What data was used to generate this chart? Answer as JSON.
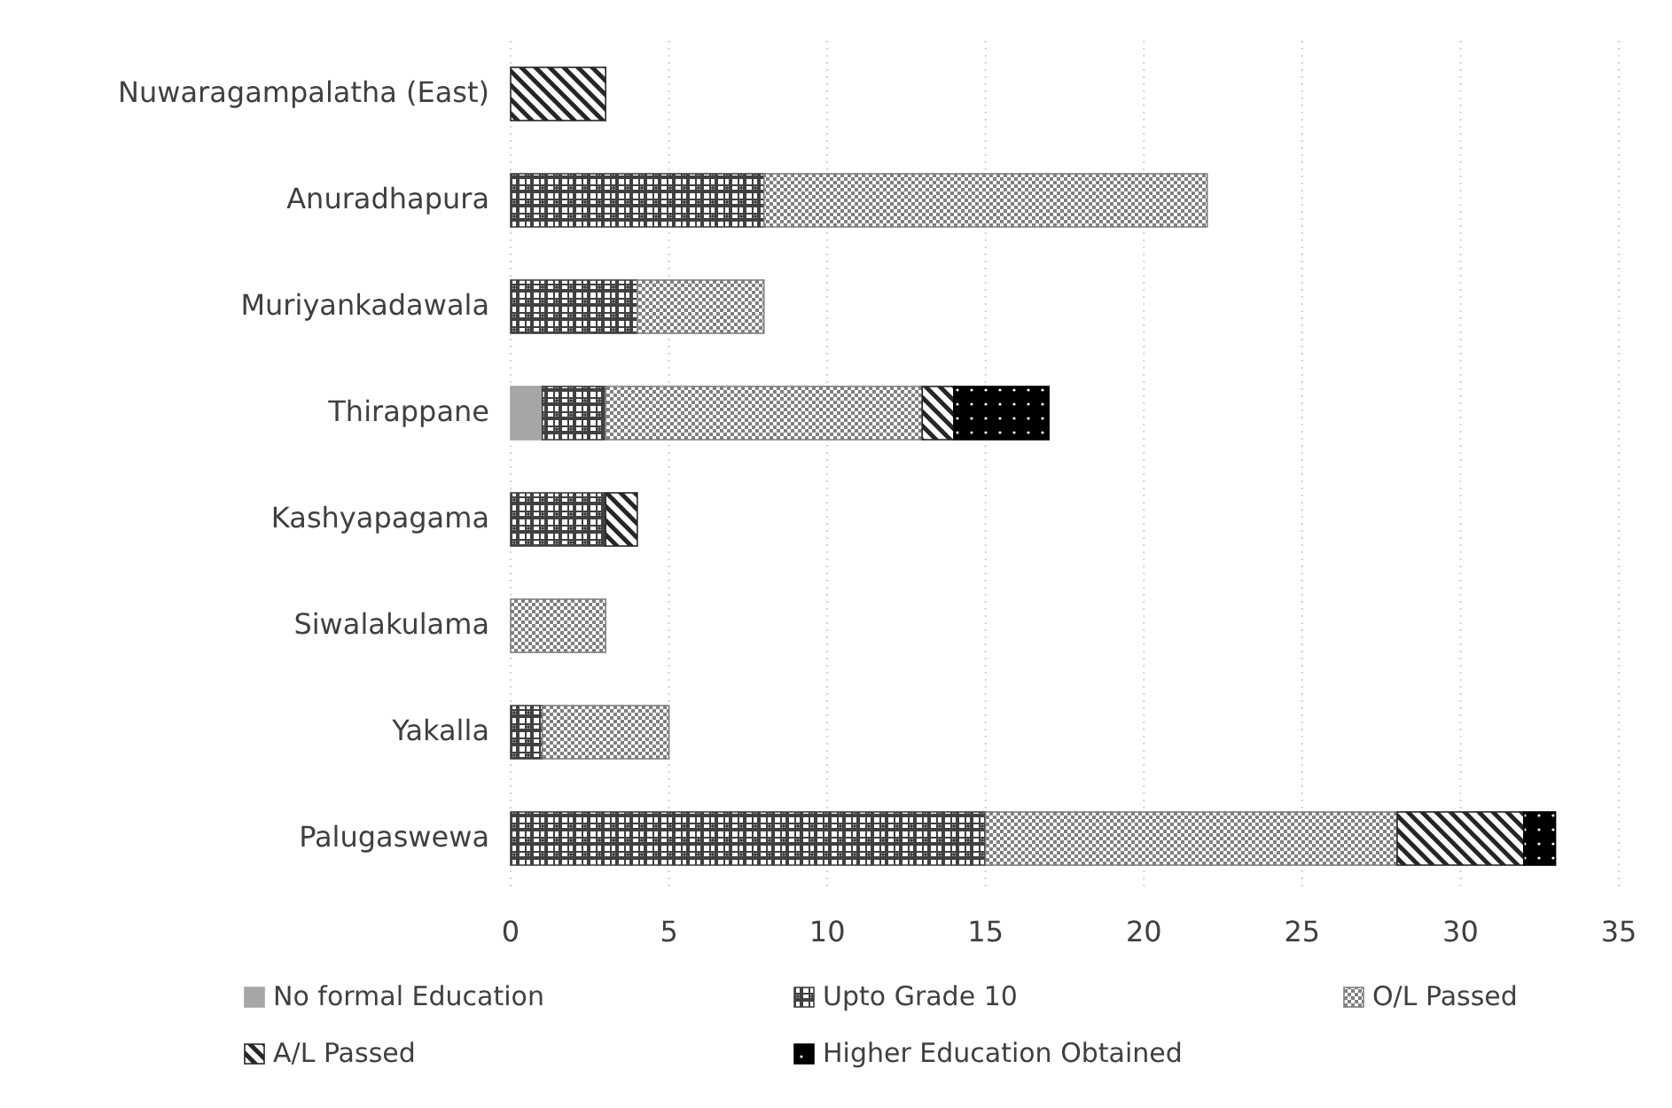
{
  "chart_data": {
    "type": "bar",
    "orientation": "horizontal",
    "stacked": true,
    "categories": [
      "Nuwaragampalatha (East)",
      "Anuradhapura",
      "Muriyankadawala",
      "Thirappane",
      "Kashyapagama",
      "Siwalakulama",
      "Yakalla",
      "Palugaswewa"
    ],
    "series": [
      {
        "name": "No formal Education",
        "color": "#a6a6a6",
        "values": [
          0,
          0,
          0,
          1,
          0,
          0,
          0,
          0
        ]
      },
      {
        "name": "Upto Grade 10",
        "color": "#404040",
        "values": [
          0,
          8,
          4,
          2,
          3,
          0,
          1,
          15
        ]
      },
      {
        "name": "O/L Passed",
        "color": "#7f7f7f",
        "values": [
          0,
          14,
          4,
          10,
          0,
          3,
          4,
          13
        ]
      },
      {
        "name": "A/L Passed",
        "color": "#262626",
        "values": [
          3,
          0,
          0,
          1,
          1,
          0,
          0,
          4
        ]
      },
      {
        "name": "Higher Education Obtained",
        "color": "#000000",
        "values": [
          0,
          0,
          0,
          3,
          0,
          0,
          0,
          1
        ]
      }
    ],
    "xlim": [
      0,
      35
    ],
    "xticks": [
      0,
      5,
      10,
      15,
      20,
      25,
      30,
      35
    ],
    "grid": "x",
    "legend": "bottom"
  }
}
